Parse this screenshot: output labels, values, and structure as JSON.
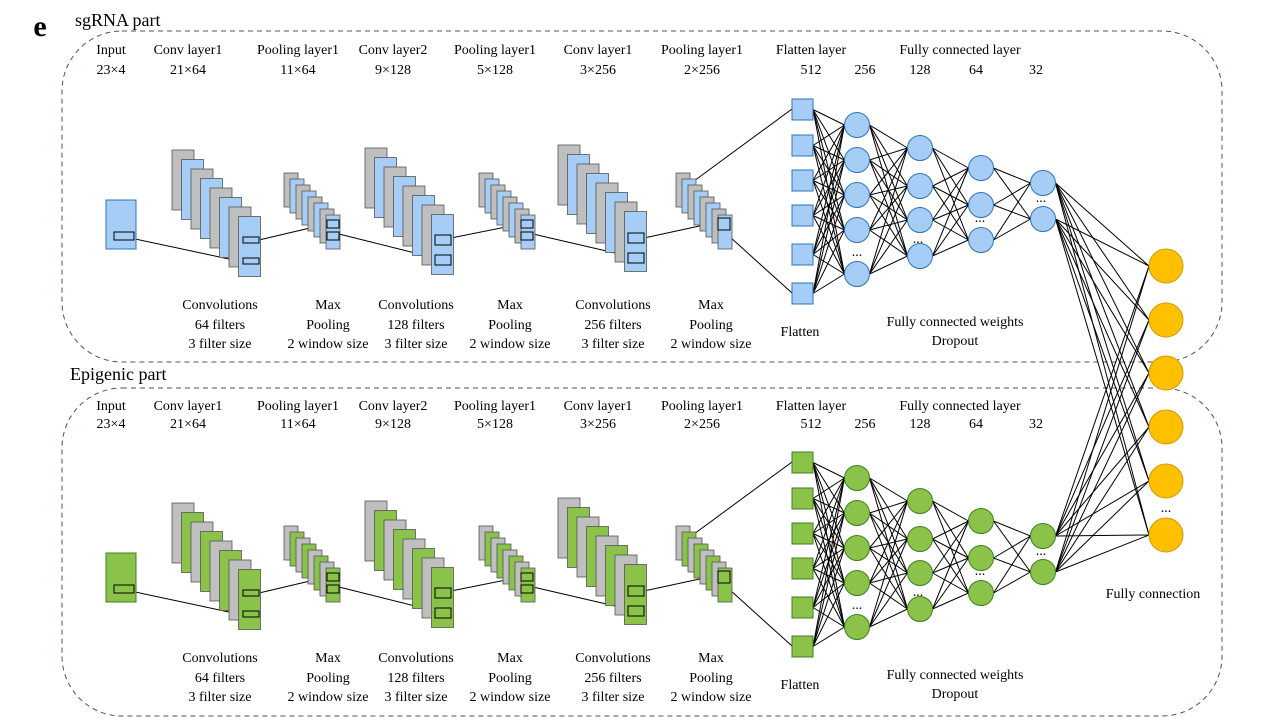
{
  "figure_letter": "e",
  "colors": {
    "sgrna_fill": "#A6CDF5",
    "sgrna_stroke": "#2E74B5",
    "epi_fill": "#8BC34A",
    "epi_stroke": "#3F7F1F",
    "gray_fill": "#BFBFBF",
    "output_fill": "#FFC000",
    "output_stroke": "#D29A00",
    "panel_border": "#44546A"
  },
  "panels": [
    {
      "title": "sgRNA part",
      "layers": [
        {
          "name": "Input",
          "size": "23×4"
        },
        {
          "name": "Conv layer1",
          "size": "21×64"
        },
        {
          "name": "Pooling layer1",
          "size": "11×64"
        },
        {
          "name": "Conv layer2",
          "size": "9×128"
        },
        {
          "name": "Pooling layer1",
          "size": "5×128"
        },
        {
          "name": "Conv layer1",
          "size": "3×256"
        },
        {
          "name": "Pooling layer1",
          "size": "2×256"
        },
        {
          "name": "Flatten layer",
          "size": "512"
        }
      ],
      "fc_title": "Fully connected layer",
      "fc_sizes": [
        "256",
        "128",
        "64",
        "32"
      ],
      "ops": [
        [
          "Convolutions",
          "64 filters",
          "3 filter  size"
        ],
        [
          "Max",
          "Pooling",
          "2 window size"
        ],
        [
          "Convolutions",
          "128 filters",
          "3 filter  size"
        ],
        [
          "Max",
          "Pooling",
          "2 window  size"
        ],
        [
          "Convolutions",
          "256 filters",
          "3 filter  size"
        ],
        [
          "Max",
          "Pooling",
          "2 window  size"
        ]
      ],
      "flatten_label": "Flatten",
      "fc_weights_label": "Fully  connected  weights",
      "dropout_label": "Dropout",
      "ellipsis": "..."
    },
    {
      "title": "Epigenic part",
      "layers": [
        {
          "name": "Input",
          "size": "23×4"
        },
        {
          "name": "Conv layer1",
          "size": "21×64"
        },
        {
          "name": "Pooling layer1",
          "size": "11×64"
        },
        {
          "name": "Conv layer2",
          "size": "9×128"
        },
        {
          "name": "Pooling layer1",
          "size": "5×128"
        },
        {
          "name": "Conv layer1",
          "size": "3×256"
        },
        {
          "name": "Pooling layer1",
          "size": "2×256"
        },
        {
          "name": "Flatten layer",
          "size": "512"
        }
      ],
      "fc_title": "Fully connected layer",
      "fc_sizes": [
        "256",
        "128",
        "64",
        "32"
      ],
      "ops": [
        [
          "Convolutions",
          "64 filters",
          "3 filter  size"
        ],
        [
          "Max",
          "Pooling",
          "2 window size"
        ],
        [
          "Convolutions",
          "128 filters",
          "3 filter  size"
        ],
        [
          "Max",
          "Pooling",
          "2 window  size"
        ],
        [
          "Convolutions",
          "256 filters",
          "3 filter  size"
        ],
        [
          "Max",
          "Pooling",
          "2 window  size"
        ]
      ],
      "flatten_label": "Flatten",
      "fc_weights_label": "Fully  connected  weights",
      "dropout_label": "Dropout",
      "ellipsis": "..."
    }
  ],
  "output": {
    "label": "Fully connection",
    "ellipsis": "..."
  }
}
